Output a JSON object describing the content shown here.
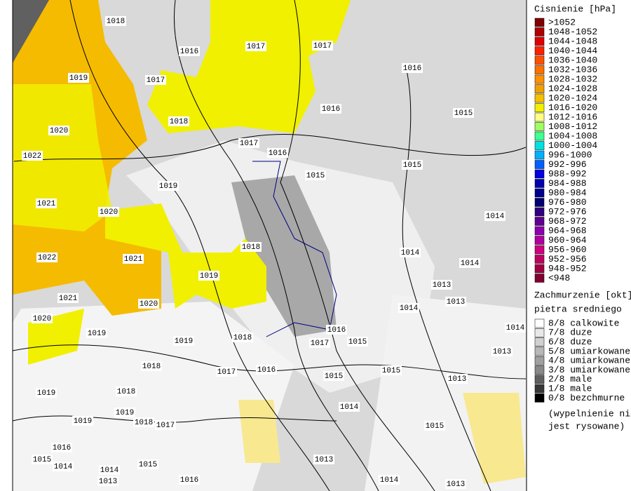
{
  "pressure_legend": {
    "title": "Cisnienie [hPa]",
    "items": [
      {
        "label": ">1052",
        "color": "#800000"
      },
      {
        "label": "1048-1052",
        "color": "#b00000"
      },
      {
        "label": "1044-1048",
        "color": "#e00000"
      },
      {
        "label": "1040-1044",
        "color": "#ff2000"
      },
      {
        "label": "1036-1040",
        "color": "#ff5000"
      },
      {
        "label": "1032-1036",
        "color": "#ff7000"
      },
      {
        "label": "1028-1032",
        "color": "#ff9000"
      },
      {
        "label": "1024-1028",
        "color": "#f0a000"
      },
      {
        "label": "1020-1024",
        "color": "#f5c000"
      },
      {
        "label": "1016-1020",
        "color": "#f0f000"
      },
      {
        "label": "1012-1016",
        "color": "#ffff80"
      },
      {
        "label": "1008-1012",
        "color": "#a0ff60"
      },
      {
        "label": "1004-1008",
        "color": "#40ff90"
      },
      {
        "label": "1000-1004",
        "color": "#00e0e0"
      },
      {
        "label": "996-1000",
        "color": "#00b0ff"
      },
      {
        "label": "992-996",
        "color": "#0060ff"
      },
      {
        "label": "988-992",
        "color": "#0000e0"
      },
      {
        "label": "984-988",
        "color": "#0000b0"
      },
      {
        "label": "980-984",
        "color": "#000090"
      },
      {
        "label": "976-980",
        "color": "#000070"
      },
      {
        "label": "972-976",
        "color": "#300080"
      },
      {
        "label": "968-972",
        "color": "#600090"
      },
      {
        "label": "964-968",
        "color": "#9000b0"
      },
      {
        "label": "960-964",
        "color": "#b000a0"
      },
      {
        "label": "956-960",
        "color": "#d00080"
      },
      {
        "label": "952-956",
        "color": "#c00060"
      },
      {
        "label": "948-952",
        "color": "#a00040"
      },
      {
        "label": "<948",
        "color": "#800030"
      }
    ]
  },
  "cloud_legend": {
    "title": "Zachmurzenie [okt]",
    "subtitle": "pietra sredniego",
    "items": [
      {
        "label": "8/8 calkowite",
        "color": "#ffffff"
      },
      {
        "label": "7/8 duze",
        "color": "#e8e8e8"
      },
      {
        "label": "6/8 duze",
        "color": "#d0d0d0"
      },
      {
        "label": "5/8 umiarkowane",
        "color": "#b8b8b8"
      },
      {
        "label": "4/8 umiarkowane",
        "color": "#a0a0a0"
      },
      {
        "label": "3/8 umiarkowane",
        "color": "#888888"
      },
      {
        "label": "2/8 male",
        "color": "#606060"
      },
      {
        "label": "1/8 male",
        "color": "#383838"
      },
      {
        "label": "0/8 bezchmurne",
        "color": "#000000"
      }
    ],
    "note": [
      "(wypelnienie nie",
      "jest rysowane)"
    ]
  },
  "isobar_labels": [
    "1018",
    "1016",
    "1017",
    "1017",
    "1016",
    "1019",
    "1017",
    "1016",
    "1015",
    "1018",
    "1020",
    "1017",
    "1016",
    "1022",
    "1015",
    "1015",
    "1019",
    "1021",
    "1020",
    "1014",
    "1018",
    "1014",
    "1022",
    "1021",
    "1014",
    "1019",
    "1013",
    "1021",
    "1013",
    "1020",
    "1014",
    "1020",
    "1019",
    "1014",
    "1016",
    "1018",
    "1019",
    "1017",
    "1015",
    "1013",
    "1018",
    "1017",
    "1016",
    "1015",
    "1015",
    "1013",
    "1019",
    "1018",
    "1014",
    "1019",
    "1019",
    "1018",
    "1017",
    "1015",
    "1016",
    "1014",
    "1015",
    "1013",
    "1014",
    "1015",
    "1016",
    "1013",
    "1014",
    "1013"
  ]
}
